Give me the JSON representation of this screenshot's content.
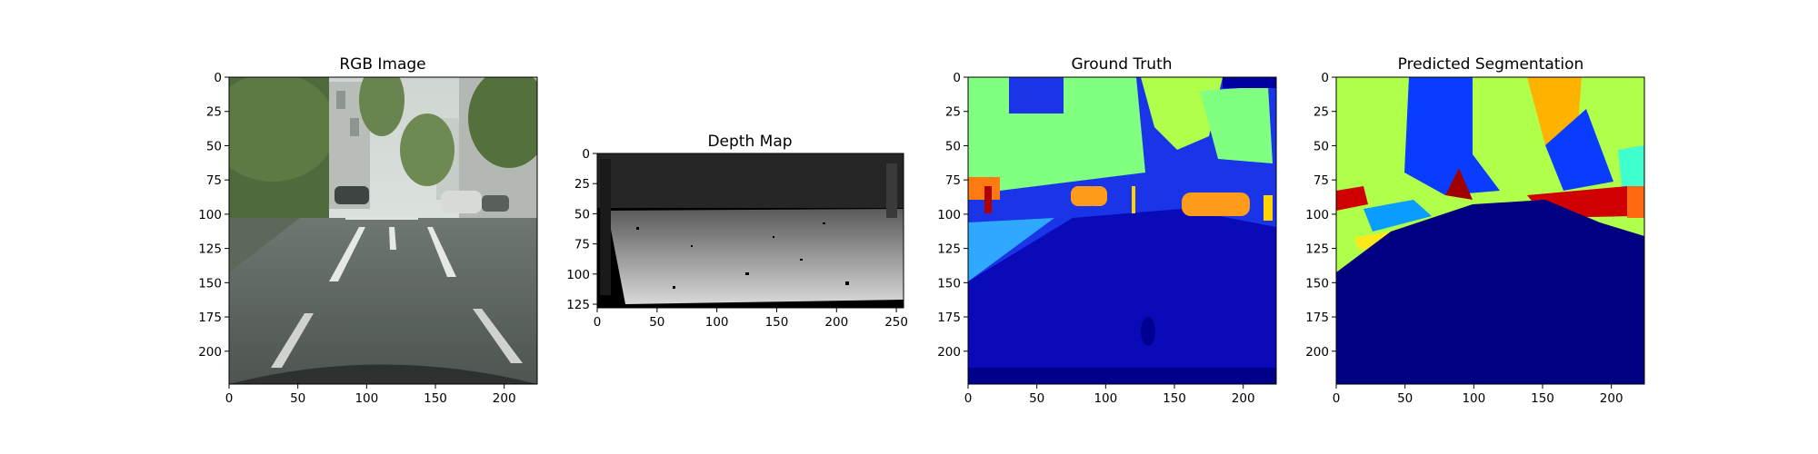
{
  "chart_data": [
    {
      "type": "image",
      "title": "RGB Image",
      "content": "street-scene-photo",
      "xlim": [
        0,
        224
      ],
      "ylim": [
        224,
        0
      ],
      "xticks": [
        0,
        50,
        100,
        150,
        200
      ],
      "yticks": [
        0,
        25,
        50,
        75,
        100,
        125,
        150,
        175,
        200
      ]
    },
    {
      "type": "image",
      "title": "Depth Map",
      "content": "grayscale-depth-map",
      "xlim": [
        0,
        256
      ],
      "ylim": [
        128,
        0
      ],
      "xticks": [
        0,
        50,
        100,
        150,
        200,
        250
      ],
      "yticks": [
        0,
        25,
        50,
        75,
        100,
        125
      ]
    },
    {
      "type": "image",
      "title": "Ground Truth",
      "content": "semantic-segmentation-jet-colormap",
      "xlim": [
        0,
        224
      ],
      "ylim": [
        224,
        0
      ],
      "xticks": [
        0,
        50,
        100,
        150,
        200
      ],
      "yticks": [
        0,
        25,
        50,
        75,
        100,
        125,
        150,
        175,
        200
      ]
    },
    {
      "type": "image",
      "title": "Predicted Segmentation",
      "content": "semantic-segmentation-jet-colormap",
      "xlim": [
        0,
        224
      ],
      "ylim": [
        224,
        0
      ],
      "xticks": [
        0,
        50,
        100,
        150,
        200
      ],
      "yticks": [
        0,
        25,
        50,
        75,
        100,
        125,
        150,
        175,
        200
      ]
    }
  ]
}
